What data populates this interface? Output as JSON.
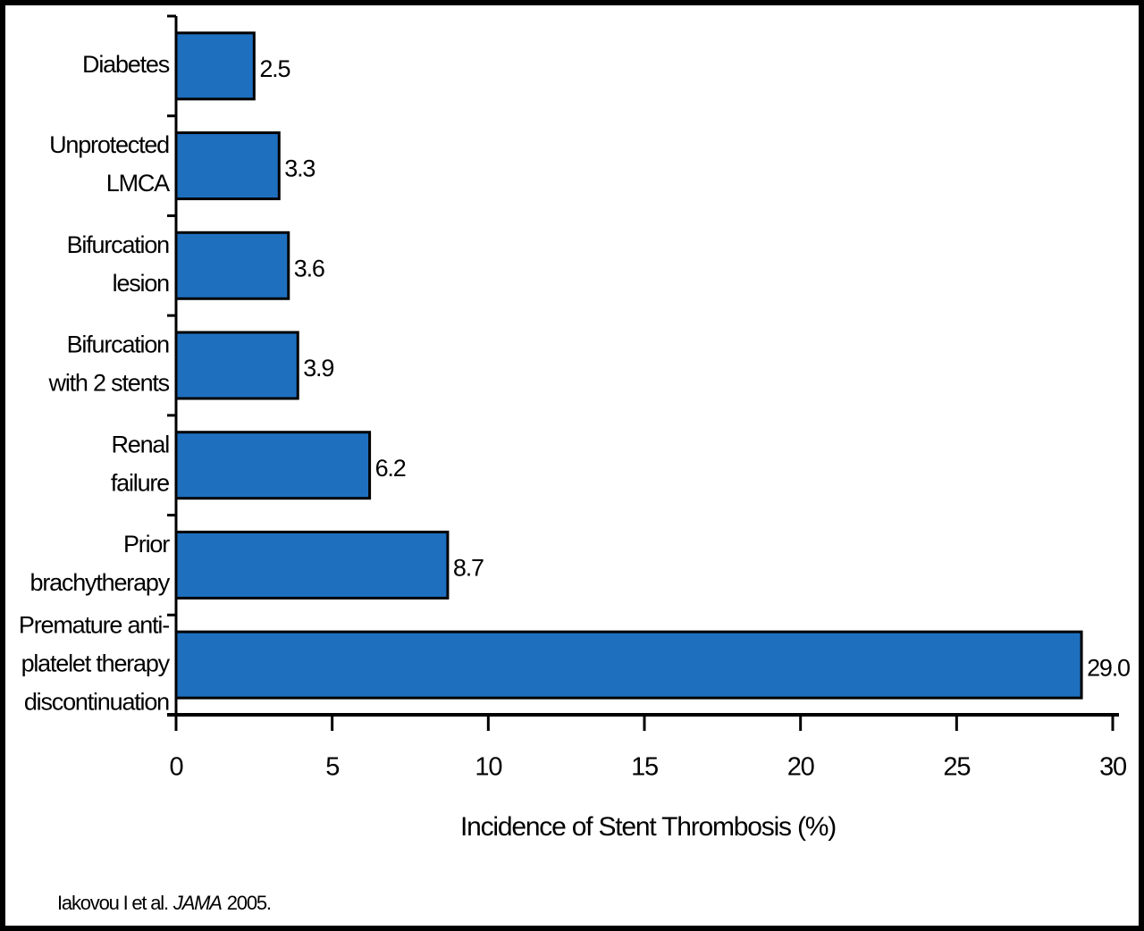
{
  "chart_data": {
    "type": "bar",
    "orientation": "horizontal",
    "categories": [
      [
        "Diabetes"
      ],
      [
        "Unprotected",
        "LMCA"
      ],
      [
        "Bifurcation",
        "lesion"
      ],
      [
        "Bifurcation",
        "with 2 stents"
      ],
      [
        "Renal",
        "failure"
      ],
      [
        "Prior",
        "brachytherapy"
      ],
      [
        "Premature anti-",
        "platelet therapy",
        "discontinuation"
      ]
    ],
    "values": [
      2.5,
      3.3,
      3.6,
      3.9,
      6.2,
      8.7,
      29.0
    ],
    "value_labels": [
      "2.5",
      "3.3",
      "3.6",
      "3.9",
      "6.2",
      "8.7",
      "29.0"
    ],
    "color": "#1f6fbf",
    "xlim": [
      0,
      30
    ],
    "xticks": [
      0,
      5,
      10,
      15,
      20,
      25,
      30
    ],
    "x_label": "Incidence of Stent Thrombosis (%)",
    "source": [
      "Iakovou I et al.",
      "JAMA",
      "2005."
    ]
  }
}
